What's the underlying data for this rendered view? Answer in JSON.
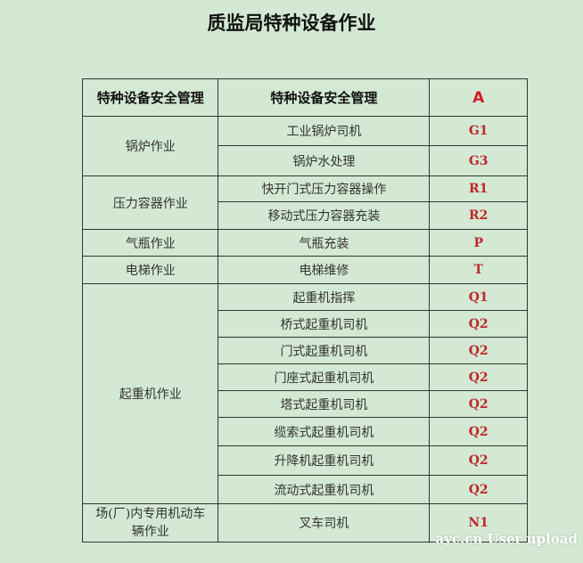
{
  "title": "质监局特种设备作业",
  "header": [
    "特种设备安全管理",
    "特种设备安全管理",
    "A"
  ],
  "groups": [
    {
      "category": "锅炉作业",
      "items": [
        {
          "name": "工业锅炉司机",
          "code": "G1"
        },
        {
          "name": "锅炉水处理",
          "code": "G3"
        }
      ]
    },
    {
      "category": "压力容器作业",
      "items": [
        {
          "name": "快开门式压力容器操作",
          "code": "R1"
        },
        {
          "name": "移动式压力容器充装",
          "code": "R2"
        }
      ]
    },
    {
      "category": "气瓶作业",
      "items": [
        {
          "name": "气瓶充装",
          "code": "P"
        }
      ]
    },
    {
      "category": "电梯作业",
      "items": [
        {
          "name": "电梯维修",
          "code": "T"
        }
      ]
    },
    {
      "category": "起重机作业",
      "items": [
        {
          "name": "起重机指挥",
          "code": "Q1"
        },
        {
          "name": "桥式起重机司机",
          "code": "Q2"
        },
        {
          "name": "门式起重机司机",
          "code": "Q2"
        },
        {
          "name": "门座式起重机司机",
          "code": "Q2"
        },
        {
          "name": "塔式起重机司机",
          "code": "Q2"
        },
        {
          "name": "缆索式起重机司机",
          "code": "Q2"
        },
        {
          "name": "升降机起重机司机",
          "code": "Q2"
        },
        {
          "name": "流动式起重机司机",
          "code": "Q2"
        }
      ]
    },
    {
      "category": "场(厂)内专用机动车辆作业",
      "items": [
        {
          "name": "叉车司机",
          "code": "N1"
        }
      ]
    }
  ],
  "watermark": "ayc.cn User upload",
  "colors": {
    "background": "#d3e9d3",
    "code": "#c0262a"
  }
}
